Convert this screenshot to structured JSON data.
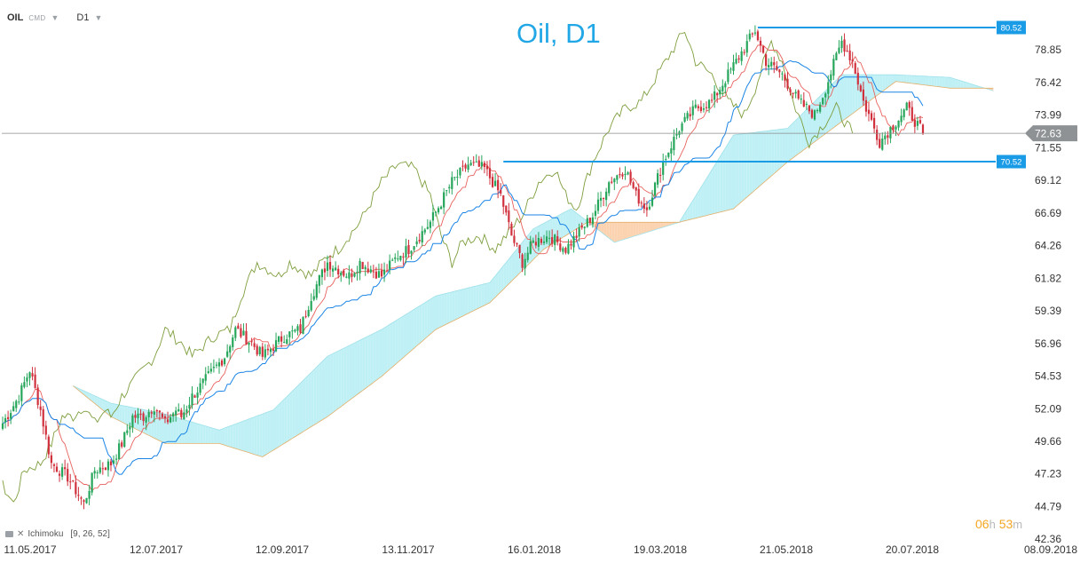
{
  "toolbar": {
    "symbol": "OIL",
    "symbol_type": "CMD",
    "timeframe": "D1"
  },
  "indicator": {
    "name": "Ichimoku",
    "params": "[9, 26, 52]"
  },
  "countdown": {
    "hours": "06",
    "h_unit": "h",
    "minutes": "53",
    "m_unit": "m"
  },
  "chart_data": {
    "type": "candlestick",
    "title": "Oil, D1",
    "ylim": [
      42.36,
      81.5
    ],
    "y_ticks": [
      "78.85",
      "76.42",
      "73.99",
      "71.55",
      "69.12",
      "66.69",
      "64.26",
      "61.82",
      "59.39",
      "56.96",
      "54.53",
      "52.09",
      "49.66",
      "47.23",
      "44.79",
      "42.36"
    ],
    "x_ticks": [
      "11.05.2017",
      "12.07.2017",
      "12.09.2017",
      "13.11.2017",
      "16.01.2018",
      "19.03.2018",
      "21.05.2018",
      "20.07.2018",
      "08.09.2018"
    ],
    "current_price": "72.63",
    "levels": [
      {
        "label": "80.52",
        "value": 80.52
      },
      {
        "label": "70.52",
        "value": 70.52
      }
    ],
    "colors": {
      "title": "#22a7e6",
      "level": "#1a9be6",
      "bull": "#26a65b",
      "bear": "#d0313d",
      "tenkan": "#e8625e",
      "kijun": "#1a84e6",
      "chikou": "#7e9e3d",
      "kumo_bull": "#bff0f5",
      "kumo_bear": "#fbd3b0"
    },
    "close_anchors": [
      [
        0,
        51.0
      ],
      [
        6,
        53.0
      ],
      [
        10,
        55.0
      ],
      [
        14,
        52.0
      ],
      [
        18,
        48.0
      ],
      [
        24,
        47.0
      ],
      [
        30,
        45.0
      ],
      [
        34,
        47.5
      ],
      [
        40,
        48.0
      ],
      [
        44,
        49.5
      ],
      [
        48,
        51.5
      ],
      [
        52,
        51.5
      ],
      [
        56,
        52.3
      ],
      [
        60,
        51.0
      ],
      [
        64,
        52.0
      ],
      [
        66,
        51.5
      ],
      [
        70,
        53.0
      ],
      [
        76,
        54.5
      ],
      [
        82,
        56.0
      ],
      [
        86,
        58.0
      ],
      [
        92,
        57.0
      ],
      [
        96,
        56.0
      ],
      [
        104,
        57.5
      ],
      [
        110,
        58.0
      ],
      [
        114,
        60.5
      ],
      [
        120,
        63.0
      ],
      [
        128,
        62.0
      ],
      [
        132,
        63.0
      ],
      [
        140,
        62.0
      ],
      [
        146,
        63.5
      ],
      [
        150,
        64.0
      ],
      [
        158,
        66.0
      ],
      [
        166,
        69.0
      ],
      [
        172,
        70.3
      ],
      [
        178,
        70.0
      ],
      [
        184,
        68.0
      ],
      [
        188,
        65.0
      ],
      [
        192,
        63.0
      ],
      [
        196,
        64.5
      ],
      [
        202,
        65.0
      ],
      [
        208,
        64.0
      ],
      [
        212,
        65.0
      ],
      [
        218,
        66.5
      ],
      [
        224,
        69.0
      ],
      [
        230,
        70.0
      ],
      [
        234,
        68.0
      ],
      [
        238,
        67.0
      ],
      [
        244,
        70.5
      ],
      [
        250,
        73.0
      ],
      [
        256,
        74.5
      ],
      [
        262,
        75.0
      ],
      [
        268,
        77.0
      ],
      [
        274,
        79.0
      ],
      [
        278,
        80.3
      ],
      [
        282,
        78.0
      ],
      [
        288,
        77.0
      ],
      [
        294,
        75.0
      ],
      [
        300,
        74.0
      ],
      [
        304,
        76.0
      ],
      [
        310,
        79.5
      ],
      [
        314,
        78.0
      ],
      [
        318,
        75.0
      ],
      [
        324,
        72.0
      ],
      [
        330,
        73.5
      ],
      [
        334,
        74.5
      ],
      [
        340,
        72.63
      ]
    ],
    "kumo_a_anchors": [
      [
        26,
        53.8
      ],
      [
        40,
        52.5
      ],
      [
        60,
        51.7
      ],
      [
        80,
        50.5
      ],
      [
        100,
        52.0
      ],
      [
        120,
        56.0
      ],
      [
        140,
        58.0
      ],
      [
        160,
        60.5
      ],
      [
        180,
        61.5
      ],
      [
        196,
        65.5
      ],
      [
        210,
        67.0
      ],
      [
        226,
        64.5
      ],
      [
        250,
        66.0
      ],
      [
        270,
        72.5
      ],
      [
        290,
        73.0
      ],
      [
        310,
        77.0
      ],
      [
        330,
        77.0
      ],
      [
        350,
        76.8
      ],
      [
        366,
        75.8
      ]
    ],
    "kumo_b_anchors": [
      [
        26,
        53.8
      ],
      [
        40,
        51.5
      ],
      [
        60,
        49.5
      ],
      [
        80,
        49.5
      ],
      [
        96,
        48.5
      ],
      [
        120,
        51.5
      ],
      [
        140,
        54.5
      ],
      [
        160,
        58.0
      ],
      [
        180,
        60.0
      ],
      [
        200,
        64.0
      ],
      [
        216,
        66.0
      ],
      [
        230,
        66.0
      ],
      [
        250,
        66.0
      ],
      [
        270,
        67.0
      ],
      [
        290,
        70.5
      ],
      [
        310,
        73.5
      ],
      [
        330,
        76.5
      ],
      [
        350,
        76.0
      ],
      [
        366,
        76.0
      ]
    ]
  }
}
